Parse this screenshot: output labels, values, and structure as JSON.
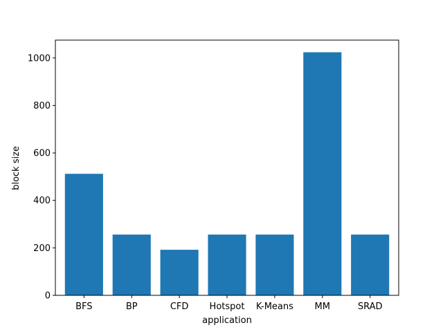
{
  "chart_data": {
    "type": "bar",
    "categories": [
      "BFS",
      "BP",
      "CFD",
      "Hotspot",
      "K-Means",
      "MM",
      "SRAD"
    ],
    "values": [
      512,
      256,
      192,
      256,
      256,
      1024,
      256
    ],
    "xlabel": "application",
    "ylabel": "block size",
    "ylim": [
      0,
      1075.2
    ],
    "yticks": [
      0,
      200,
      400,
      600,
      800,
      1000
    ],
    "bar_color": "#1f77b4",
    "grid": false
  }
}
